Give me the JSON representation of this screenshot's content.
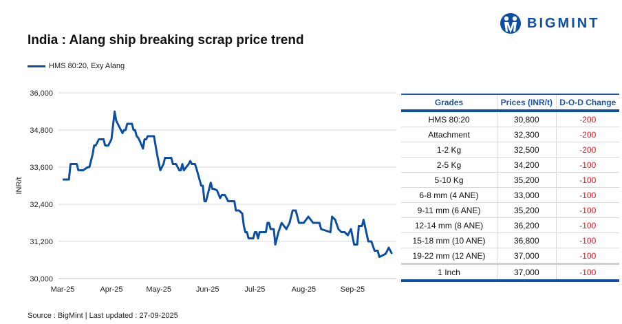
{
  "title": "India : Alang ship breaking scrap price trend",
  "logo": {
    "text": "BIGMINT",
    "icon": "bigmint-logo-icon"
  },
  "colors": {
    "line": "#0b4ea2",
    "negative": "#e8141c",
    "header": "#1a55a8",
    "grid": "#d9d9d9"
  },
  "source": "Source : BigMint | Last updated : 27-09-2025",
  "chart_data": {
    "type": "line",
    "title": "India : Alang ship breaking scrap price trend",
    "xlabel": "",
    "ylabel": "INR/t",
    "ylim": [
      30000,
      36000
    ],
    "yticks": [
      "30,000",
      "31,200",
      "32,400",
      "33,600",
      "34,800",
      "36,000"
    ],
    "ytick_values": [
      30000,
      31200,
      32400,
      33600,
      34800,
      36000
    ],
    "xlim": [
      "2025-03-01",
      "2025-09-27"
    ],
    "xticks": [
      "Mar-25",
      "Apr-25",
      "May-25",
      "Jun-25",
      "Jul-25",
      "Aug-25",
      "Sep-25"
    ],
    "xtick_dates": [
      "2025-03-01",
      "2025-04-01",
      "2025-05-01",
      "2025-06-01",
      "2025-07-01",
      "2025-08-01",
      "2025-09-01"
    ],
    "grid": "horizontal",
    "legend": "top-left",
    "series": [
      {
        "name": "HMS 80:20, Exy Alang",
        "points": [
          [
            "2025-03-01",
            33200
          ],
          [
            "2025-03-05",
            33200
          ],
          [
            "2025-03-06",
            33700
          ],
          [
            "2025-03-10",
            33700
          ],
          [
            "2025-03-11",
            33500
          ],
          [
            "2025-03-14",
            33500
          ],
          [
            "2025-03-17",
            33600
          ],
          [
            "2025-03-18",
            33600
          ],
          [
            "2025-03-20",
            34000
          ],
          [
            "2025-03-21",
            34300
          ],
          [
            "2025-03-22",
            34300
          ],
          [
            "2025-03-24",
            34500
          ],
          [
            "2025-03-27",
            34500
          ],
          [
            "2025-03-28",
            34300
          ],
          [
            "2025-03-30",
            34300
          ],
          [
            "2025-04-01",
            34500
          ],
          [
            "2025-04-03",
            35400
          ],
          [
            "2025-04-04",
            35100
          ],
          [
            "2025-04-08",
            34700
          ],
          [
            "2025-04-09",
            34800
          ],
          [
            "2025-04-10",
            34800
          ],
          [
            "2025-04-11",
            35000
          ],
          [
            "2025-04-14",
            35000
          ],
          [
            "2025-04-15",
            34800
          ],
          [
            "2025-04-16",
            34800
          ],
          [
            "2025-04-17",
            34600
          ],
          [
            "2025-04-18",
            34550
          ],
          [
            "2025-04-19",
            34450
          ],
          [
            "2025-04-21",
            34200
          ],
          [
            "2025-04-22",
            34500
          ],
          [
            "2025-04-23",
            34500
          ],
          [
            "2025-04-24",
            34600
          ],
          [
            "2025-04-28",
            34600
          ],
          [
            "2025-04-29",
            34300
          ],
          [
            "2025-04-30",
            34000
          ],
          [
            "2025-05-02",
            33500
          ],
          [
            "2025-05-04",
            33700
          ],
          [
            "2025-05-05",
            33900
          ],
          [
            "2025-05-09",
            33900
          ],
          [
            "2025-05-10",
            33700
          ],
          [
            "2025-05-12",
            33700
          ],
          [
            "2025-05-14",
            33500
          ],
          [
            "2025-05-15",
            33500
          ],
          [
            "2025-05-16",
            33700
          ],
          [
            "2025-05-17",
            33500
          ],
          [
            "2025-05-20",
            33700
          ],
          [
            "2025-05-21",
            33800
          ],
          [
            "2025-05-22",
            33700
          ],
          [
            "2025-05-24",
            33700
          ],
          [
            "2025-05-25",
            33550
          ],
          [
            "2025-05-28",
            33000
          ],
          [
            "2025-05-29",
            33000
          ],
          [
            "2025-05-30",
            32500
          ],
          [
            "2025-05-31",
            32500
          ],
          [
            "2025-06-03",
            33100
          ],
          [
            "2025-06-04",
            32900
          ],
          [
            "2025-06-05",
            32900
          ],
          [
            "2025-06-07",
            32850
          ],
          [
            "2025-06-09",
            32600
          ],
          [
            "2025-06-10",
            32700
          ],
          [
            "2025-06-12",
            32700
          ],
          [
            "2025-06-14",
            32500
          ],
          [
            "2025-06-18",
            32500
          ],
          [
            "2025-06-19",
            32200
          ],
          [
            "2025-06-21",
            32200
          ],
          [
            "2025-06-23",
            32100
          ],
          [
            "2025-06-24",
            31700
          ],
          [
            "2025-06-25",
            31500
          ],
          [
            "2025-06-26",
            31500
          ],
          [
            "2025-06-27",
            31300
          ],
          [
            "2025-06-30",
            31300
          ],
          [
            "2025-07-01",
            31500
          ],
          [
            "2025-07-02",
            31500
          ],
          [
            "2025-07-03",
            31300
          ],
          [
            "2025-07-04",
            31500
          ],
          [
            "2025-07-08",
            31500
          ],
          [
            "2025-07-09",
            31800
          ],
          [
            "2025-07-10",
            31800
          ],
          [
            "2025-07-11",
            31600
          ],
          [
            "2025-07-13",
            31600
          ],
          [
            "2025-07-14",
            31100
          ],
          [
            "2025-07-16",
            31500
          ],
          [
            "2025-07-18",
            31800
          ],
          [
            "2025-07-21",
            31600
          ],
          [
            "2025-07-23",
            31800
          ],
          [
            "2025-07-25",
            32200
          ],
          [
            "2025-07-27",
            32200
          ],
          [
            "2025-07-29",
            31800
          ],
          [
            "2025-08-01",
            31800
          ],
          [
            "2025-08-04",
            32000
          ],
          [
            "2025-08-07",
            31800
          ],
          [
            "2025-08-11",
            31800
          ],
          [
            "2025-08-12",
            31600
          ],
          [
            "2025-08-18",
            31500
          ],
          [
            "2025-08-19",
            32000
          ],
          [
            "2025-08-21",
            31900
          ],
          [
            "2025-08-23",
            31600
          ],
          [
            "2025-08-25",
            31500
          ],
          [
            "2025-08-27",
            31500
          ],
          [
            "2025-08-29",
            31400
          ],
          [
            "2025-08-31",
            31600
          ],
          [
            "2025-09-02",
            31100
          ],
          [
            "2025-09-04",
            31100
          ],
          [
            "2025-09-05",
            31700
          ],
          [
            "2025-09-07",
            31700
          ],
          [
            "2025-09-08",
            31900
          ],
          [
            "2025-09-11",
            31200
          ],
          [
            "2025-09-13",
            31200
          ],
          [
            "2025-09-15",
            30900
          ],
          [
            "2025-09-17",
            30900
          ],
          [
            "2025-09-18",
            30700
          ],
          [
            "2025-09-20",
            30750
          ],
          [
            "2025-09-22",
            30800
          ],
          [
            "2025-09-24",
            31000
          ],
          [
            "2025-09-26",
            30800
          ]
        ]
      }
    ]
  },
  "table": {
    "headers": [
      "Grades",
      "Prices (INR/t)",
      "D-O-D Change"
    ],
    "rows": [
      [
        "HMS 80:20",
        "30,800",
        "-200"
      ],
      [
        "Attachment",
        "32,300",
        "-200"
      ],
      [
        "1-2 Kg",
        "32,500",
        "-200"
      ],
      [
        "2-5 Kg",
        "34,200",
        "-100"
      ],
      [
        "5-10 Kg",
        "35,200",
        "-100"
      ],
      [
        "6-8 mm (4 ANE)",
        "33,000",
        "-100"
      ],
      [
        "9-11 mm (6 ANE)",
        "35,200",
        "-100"
      ],
      [
        "12-14 mm (8 ANE)",
        "36,200",
        "-100"
      ],
      [
        "15-18 mm (10 ANE)",
        "36,800",
        "-100"
      ],
      [
        "19-22 mm (12 ANE)",
        "37,000",
        "-100"
      ],
      [
        "1 Inch",
        "37,000",
        "-100"
      ]
    ]
  }
}
